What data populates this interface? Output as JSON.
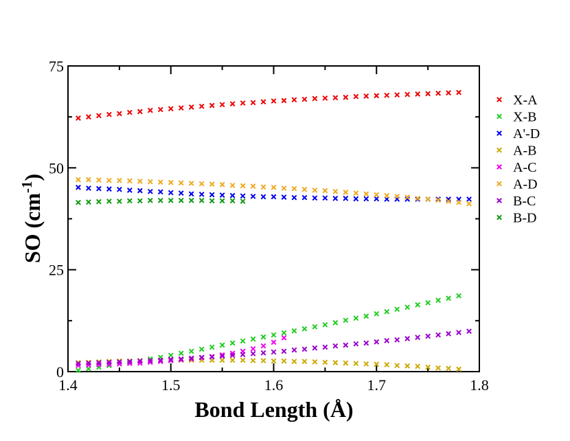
{
  "chart_data": {
    "type": "scatter",
    "title": "",
    "xlabel": "Bond Length (Å)",
    "ylabel_main": "SO (cm",
    "ylabel_sup": "-1",
    "ylabel_close": ")",
    "xlim": [
      1.4,
      1.8
    ],
    "ylim": [
      0,
      75
    ],
    "xticks": [
      1.4,
      1.5,
      1.6,
      1.7,
      1.8
    ],
    "xtick_labels": [
      "1.4",
      "1.5",
      "1.6",
      "1.7",
      "1.8"
    ],
    "yticks": [
      0,
      25,
      50,
      75
    ],
    "ytick_labels": [
      "0",
      "25",
      "50",
      "75"
    ],
    "grid": false,
    "marker": "x",
    "legend_position": "right",
    "series": [
      {
        "name": "X-A",
        "color": "#ee0000",
        "x": [
          1.41,
          1.42,
          1.43,
          1.44,
          1.45,
          1.46,
          1.47,
          1.48,
          1.49,
          1.5,
          1.51,
          1.52,
          1.53,
          1.54,
          1.55,
          1.56,
          1.57,
          1.58,
          1.59,
          1.6,
          1.61,
          1.62,
          1.63,
          1.64,
          1.65,
          1.66,
          1.67,
          1.68,
          1.69,
          1.7,
          1.71,
          1.72,
          1.73,
          1.74,
          1.75,
          1.76,
          1.77,
          1.78
        ],
        "y": [
          62.2,
          62.5,
          62.8,
          63.1,
          63.3,
          63.6,
          63.8,
          64.1,
          64.3,
          64.5,
          64.7,
          64.9,
          65.1,
          65.3,
          65.5,
          65.7,
          65.9,
          66.0,
          66.2,
          66.4,
          66.5,
          66.7,
          66.8,
          67.0,
          67.1,
          67.2,
          67.3,
          67.5,
          67.6,
          67.7,
          67.8,
          67.9,
          68.0,
          68.1,
          68.2,
          68.3,
          68.4,
          68.5
        ]
      },
      {
        "name": "X-B",
        "color": "#22cc22",
        "x": [
          1.41,
          1.42,
          1.43,
          1.44,
          1.45,
          1.46,
          1.47,
          1.48,
          1.49,
          1.5,
          1.51,
          1.52,
          1.53,
          1.54,
          1.55,
          1.56,
          1.57,
          1.58,
          1.59,
          1.6,
          1.61,
          1.62,
          1.63,
          1.64,
          1.65,
          1.66,
          1.67,
          1.68,
          1.69,
          1.7,
          1.71,
          1.72,
          1.73,
          1.74,
          1.75,
          1.76,
          1.77,
          1.78
        ],
        "y": [
          0.3,
          0.7,
          1.1,
          1.5,
          1.9,
          2.3,
          2.7,
          3.1,
          3.5,
          4.0,
          4.5,
          5.0,
          5.5,
          6.0,
          6.5,
          7.0,
          7.5,
          8.0,
          8.5,
          9.0,
          9.5,
          10.0,
          10.5,
          11.0,
          11.5,
          12.0,
          12.6,
          13.1,
          13.6,
          14.2,
          14.7,
          15.3,
          15.8,
          16.4,
          16.9,
          17.5,
          18.0,
          18.6
        ]
      },
      {
        "name": "A'-D",
        "color": "#0000ee",
        "x": [
          1.41,
          1.42,
          1.43,
          1.44,
          1.45,
          1.46,
          1.47,
          1.48,
          1.49,
          1.5,
          1.51,
          1.52,
          1.53,
          1.54,
          1.55,
          1.56,
          1.57,
          1.58,
          1.59,
          1.6,
          1.61,
          1.62,
          1.63,
          1.64,
          1.65,
          1.66,
          1.67,
          1.68,
          1.69,
          1.7,
          1.71,
          1.72,
          1.73,
          1.74,
          1.75,
          1.76,
          1.77,
          1.78,
          1.79
        ],
        "y": [
          45.2,
          45.0,
          44.9,
          44.8,
          44.7,
          44.5,
          44.4,
          44.2,
          44.1,
          43.9,
          43.8,
          43.6,
          43.5,
          43.4,
          43.3,
          43.2,
          43.1,
          43.0,
          42.9,
          42.9,
          42.8,
          42.7,
          42.7,
          42.6,
          42.6,
          42.5,
          42.5,
          42.4,
          42.4,
          42.4,
          42.3,
          42.3,
          42.3,
          42.3,
          42.3,
          42.3,
          42.3,
          42.3,
          42.3
        ]
      },
      {
        "name": "A-B",
        "color": "#ccaa00",
        "x": [
          1.41,
          1.42,
          1.43,
          1.44,
          1.45,
          1.46,
          1.47,
          1.48,
          1.49,
          1.5,
          1.51,
          1.52,
          1.53,
          1.54,
          1.55,
          1.56,
          1.57,
          1.58,
          1.59,
          1.6,
          1.61,
          1.62,
          1.63,
          1.64,
          1.65,
          1.66,
          1.67,
          1.68,
          1.69,
          1.7,
          1.71,
          1.72,
          1.73,
          1.74,
          1.75,
          1.76,
          1.77,
          1.78
        ],
        "y": [
          2.2,
          2.3,
          2.4,
          2.5,
          2.6,
          2.6,
          2.7,
          2.7,
          2.8,
          2.8,
          2.8,
          2.8,
          2.8,
          2.8,
          2.8,
          2.8,
          2.8,
          2.7,
          2.7,
          2.6,
          2.6,
          2.5,
          2.5,
          2.4,
          2.3,
          2.2,
          2.1,
          2.0,
          1.9,
          1.8,
          1.7,
          1.5,
          1.4,
          1.3,
          1.1,
          0.9,
          0.8,
          0.6
        ]
      },
      {
        "name": "A-C",
        "color": "#ee00ee",
        "x": [
          1.41,
          1.42,
          1.43,
          1.44,
          1.45,
          1.46,
          1.47,
          1.48,
          1.49,
          1.5,
          1.51,
          1.52,
          1.53,
          1.54,
          1.55,
          1.56,
          1.57,
          1.58,
          1.59,
          1.6,
          1.61
        ],
        "y": [
          1.5,
          1.6,
          1.7,
          1.8,
          1.9,
          2.0,
          2.1,
          2.3,
          2.5,
          2.7,
          2.9,
          3.1,
          3.4,
          3.7,
          4.1,
          4.5,
          5.0,
          5.6,
          6.3,
          7.2,
          8.3
        ]
      },
      {
        "name": "A-D",
        "color": "#eeaa22",
        "x": [
          1.41,
          1.42,
          1.43,
          1.44,
          1.45,
          1.46,
          1.47,
          1.48,
          1.49,
          1.5,
          1.51,
          1.52,
          1.53,
          1.54,
          1.55,
          1.56,
          1.57,
          1.58,
          1.59,
          1.6,
          1.61,
          1.62,
          1.63,
          1.64,
          1.65,
          1.66,
          1.67,
          1.68,
          1.69,
          1.7,
          1.71,
          1.72,
          1.73,
          1.74,
          1.75,
          1.76,
          1.77,
          1.78,
          1.79
        ],
        "y": [
          47.1,
          47.1,
          47.0,
          46.9,
          46.9,
          46.8,
          46.7,
          46.6,
          46.5,
          46.4,
          46.3,
          46.2,
          46.1,
          46.0,
          45.9,
          45.7,
          45.6,
          45.5,
          45.3,
          45.2,
          45.0,
          44.9,
          44.7,
          44.5,
          44.4,
          44.2,
          44.0,
          43.8,
          43.6,
          43.4,
          43.2,
          43.0,
          42.8,
          42.5,
          42.3,
          42.1,
          41.8,
          41.5,
          41.2
        ]
      },
      {
        "name": "B-C",
        "color": "#9900cc",
        "x": [
          1.41,
          1.42,
          1.43,
          1.44,
          1.45,
          1.46,
          1.47,
          1.48,
          1.49,
          1.5,
          1.51,
          1.52,
          1.53,
          1.54,
          1.55,
          1.56,
          1.57,
          1.58,
          1.59,
          1.6,
          1.61,
          1.62,
          1.63,
          1.64,
          1.65,
          1.66,
          1.67,
          1.68,
          1.69,
          1.7,
          1.71,
          1.72,
          1.73,
          1.74,
          1.75,
          1.76,
          1.77,
          1.78,
          1.79
        ],
        "y": [
          2.0,
          2.1,
          2.2,
          2.3,
          2.4,
          2.5,
          2.6,
          2.7,
          2.8,
          3.0,
          3.1,
          3.3,
          3.5,
          3.6,
          3.8,
          4.0,
          4.2,
          4.4,
          4.6,
          4.8,
          5.0,
          5.3,
          5.5,
          5.8,
          6.0,
          6.3,
          6.5,
          6.8,
          7.0,
          7.3,
          7.6,
          7.8,
          8.1,
          8.4,
          8.7,
          9.0,
          9.3,
          9.6,
          9.9
        ]
      },
      {
        "name": "B-D",
        "color": "#119911",
        "x": [
          1.41,
          1.42,
          1.43,
          1.44,
          1.45,
          1.46,
          1.47,
          1.48,
          1.49,
          1.5,
          1.51,
          1.52,
          1.53,
          1.54,
          1.55,
          1.56,
          1.57
        ],
        "y": [
          41.5,
          41.6,
          41.7,
          41.8,
          41.8,
          41.9,
          41.9,
          42.0,
          42.0,
          42.0,
          42.0,
          42.0,
          42.0,
          41.9,
          41.9,
          41.9,
          41.8
        ]
      }
    ]
  }
}
